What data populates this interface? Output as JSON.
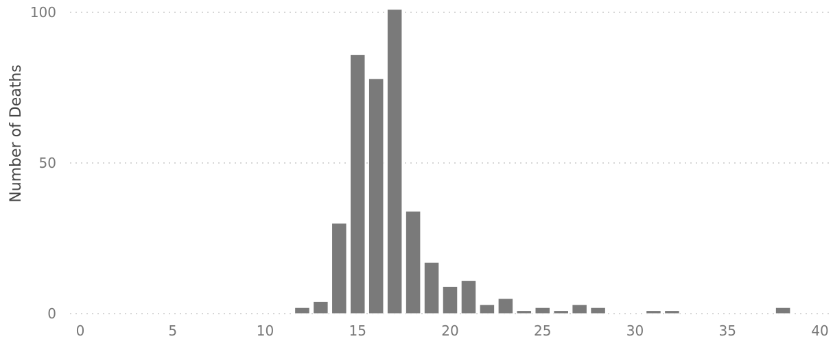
{
  "chart_data": {
    "type": "bar",
    "title": "",
    "xlabel": "",
    "ylabel": "Number of Deaths",
    "x": [
      12,
      13,
      14,
      15,
      16,
      17,
      18,
      19,
      20,
      21,
      22,
      23,
      24,
      25,
      26,
      27,
      28,
      31,
      32,
      38
    ],
    "values": [
      2,
      4,
      30,
      86,
      78,
      101,
      34,
      17,
      9,
      11,
      3,
      5,
      1,
      2,
      1,
      3,
      2,
      1,
      1,
      2
    ],
    "xlim": [
      0,
      40
    ],
    "ylim": [
      0,
      100
    ],
    "xticks": [
      "0",
      "5",
      "10",
      "15",
      "20",
      "25",
      "30",
      "35",
      "40"
    ],
    "yticks": [
      "0",
      "50",
      "100"
    ],
    "grid": "horizontal dotted",
    "legend": "none",
    "colors": {
      "bar": "#7a7a7a",
      "grid": "#c8c8c8",
      "tick_label": "#777777",
      "axis_title": "#444444"
    }
  }
}
